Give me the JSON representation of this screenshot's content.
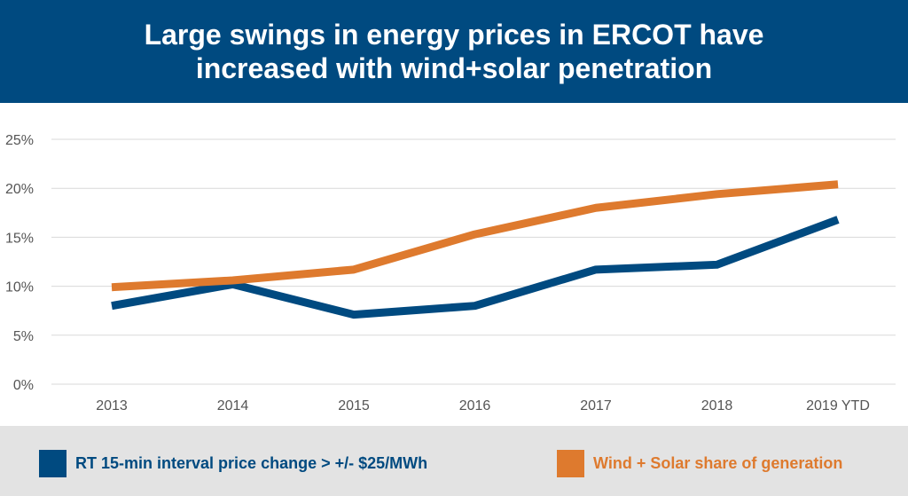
{
  "title": "Large swings in energy prices in ERCOT have increased with wind+solar penetration",
  "chart_data": {
    "type": "line",
    "title": "Large swings in energy prices in ERCOT have increased with wind+solar penetration",
    "xlabel": "",
    "ylabel": "",
    "categories": [
      "2013",
      "2014",
      "2015",
      "2016",
      "2017",
      "2018",
      "2019 YTD"
    ],
    "y_ticks": [
      "0%",
      "5%",
      "10%",
      "15%",
      "20%",
      "25%"
    ],
    "ylim": [
      0,
      25
    ],
    "grid": true,
    "legend_position": "bottom",
    "series": [
      {
        "name": "RT 15-min interval price change > +/- $25/MWh",
        "values": [
          8.0,
          10.2,
          7.1,
          8.0,
          11.7,
          12.2,
          16.8
        ],
        "color": "#004a80"
      },
      {
        "name": "Wind + Solar share of generation",
        "values": [
          9.9,
          10.6,
          11.7,
          15.3,
          18.0,
          19.4,
          20.4
        ],
        "color": "#de7a2e"
      }
    ]
  },
  "colors": {
    "banner": "#004a80",
    "legend_background": "#e3e3e3"
  }
}
